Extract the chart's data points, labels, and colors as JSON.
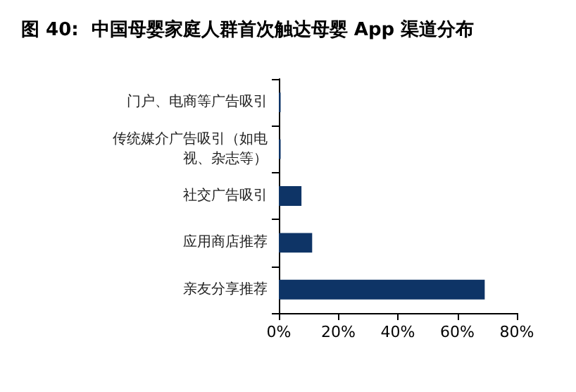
{
  "chart_data": {
    "type": "bar",
    "orientation": "horizontal",
    "title": "图 40:  中国母婴家庭人群首次触达母婴 App 渠道分布",
    "categories": [
      "门户、电商等广告吸引",
      "传统媒介广告吸引（如电视、杂志等）",
      "社交广告吸引",
      "应用商店推荐",
      "亲友分享推荐"
    ],
    "values": [
      0.6,
      0.6,
      7.6,
      11.2,
      69.2
    ],
    "color": "#0e3466",
    "xlim": [
      0,
      80
    ],
    "xticks": [
      {
        "value": 0,
        "label": "0%"
      },
      {
        "value": 20,
        "label": "20%"
      },
      {
        "value": 40,
        "label": "40%"
      },
      {
        "value": 60,
        "label": "60%"
      },
      {
        "value": 80,
        "label": "80%"
      }
    ],
    "grid": false
  }
}
